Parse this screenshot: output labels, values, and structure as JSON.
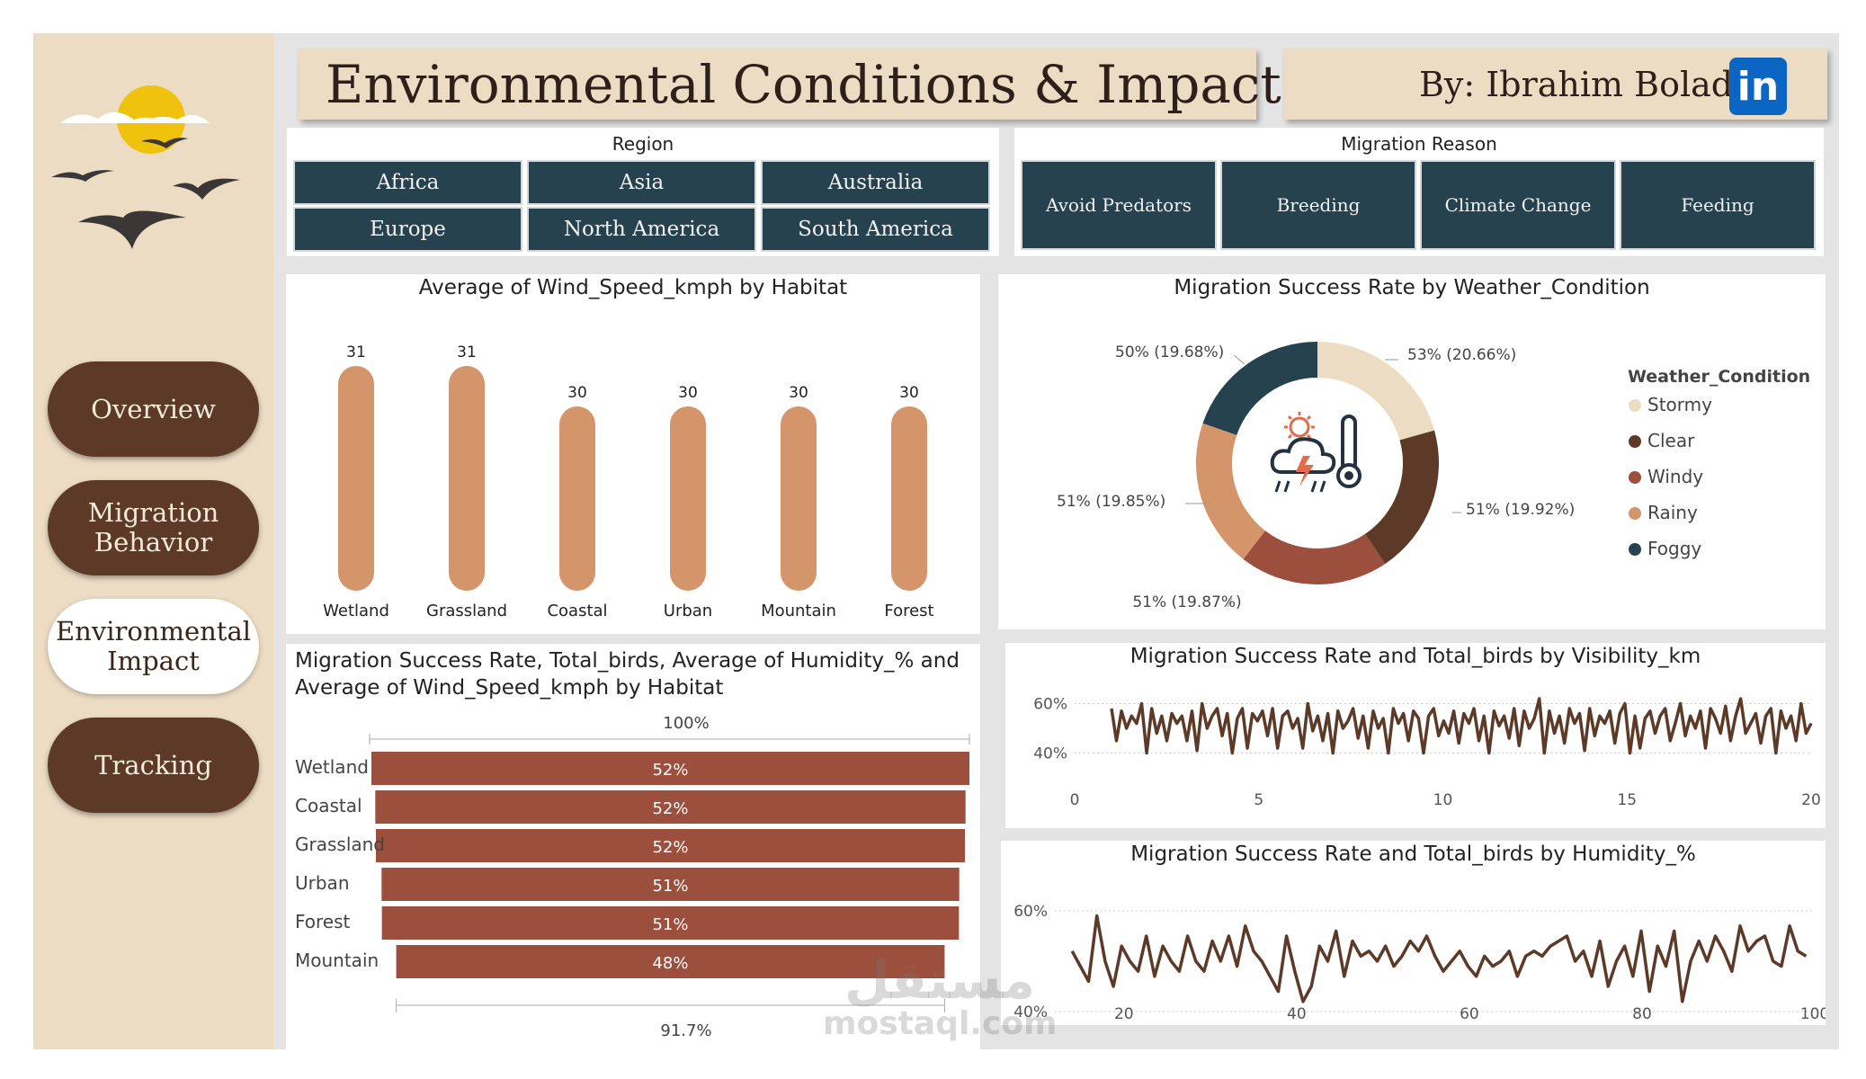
{
  "header": {
    "title": "Environmental Conditions & Impact",
    "author": "By: Ibrahim Bolad",
    "linkedin_icon": "in"
  },
  "nav": {
    "items": [
      {
        "label": "Overview",
        "active": false
      },
      {
        "label": "Migration Behavior",
        "active": false
      },
      {
        "label": "Environmental Impact",
        "active": true
      },
      {
        "label": "Tracking",
        "active": false
      }
    ]
  },
  "region_slicer": {
    "title": "Region",
    "options": [
      "Africa",
      "Asia",
      "Australia",
      "Europe",
      "North America",
      "South America"
    ]
  },
  "reason_slicer": {
    "title": "Migration Reason",
    "options": [
      "Avoid Predators",
      "Breeding",
      "Climate Change",
      "Feeding"
    ]
  },
  "colors": {
    "dark_brown": "#5c3a27",
    "beige": "#ecdcc4",
    "teal": "#26424f",
    "tan": "#d4956a",
    "rust": "#9c4f3c",
    "line": "#5c3a27"
  },
  "chart_data": [
    {
      "id": "wind_by_habitat",
      "type": "bar",
      "title": "Average of Wind_Speed_kmph by Habitat",
      "categories": [
        "Wetland",
        "Grassland",
        "Coastal",
        "Urban",
        "Mountain",
        "Forest"
      ],
      "values": [
        31,
        31,
        30,
        30,
        30,
        30
      ],
      "data_labels": [
        "31",
        "31",
        "30",
        "30",
        "30",
        "30"
      ],
      "color": "#d4956a"
    },
    {
      "id": "success_by_weather",
      "type": "pie",
      "title": "Migration Success Rate by Weather_Condition",
      "legend_title": "Weather_Condition",
      "legend_position": "right",
      "slices": [
        {
          "name": "Stormy",
          "share": 20.66,
          "label": "53% (20.66%)",
          "color": "#ecdcc4"
        },
        {
          "name": "Clear",
          "share": 19.92,
          "label": "51% (19.92%)",
          "color": "#5c3a27"
        },
        {
          "name": "Windy",
          "share": 19.87,
          "label": "51% (19.87%)",
          "color": "#9c4f3c"
        },
        {
          "name": "Rainy",
          "share": 19.85,
          "label": "51% (19.85%)",
          "color": "#d4956a"
        },
        {
          "name": "Foggy",
          "share": 19.68,
          "label": "50% (19.68%)",
          "color": "#26424f"
        }
      ]
    },
    {
      "id": "success_by_habitat",
      "type": "bar",
      "title": "Migration Success Rate, Total_birds, Average of Humidity_% and Average of Wind_Speed_kmph by Habitat",
      "categories": [
        "Wetland",
        "Coastal",
        "Grassland",
        "Urban",
        "Forest",
        "Mountain"
      ],
      "values": [
        52,
        52,
        52,
        51,
        51,
        48
      ],
      "data_labels": [
        "52%",
        "52%",
        "52%",
        "51%",
        "51%",
        "48%"
      ],
      "widths": [
        100,
        98.7,
        98.5,
        96.6,
        96.5,
        91.7
      ],
      "axis_top_label": "100%",
      "axis_bottom_label": "91.7%",
      "color": "#9c4f3c"
    },
    {
      "id": "success_by_visibility",
      "type": "line",
      "title": "Migration Success Rate and Total_birds by Visibility_km",
      "xlim": [
        0,
        20
      ],
      "ylim": [
        30,
        70
      ],
      "x_ticks": [
        "0",
        "5",
        "10",
        "15",
        "20"
      ],
      "y_ticks": [
        "60%",
        "40%"
      ],
      "series": [
        {
          "x_start": 1.0,
          "x_end": 20.0,
          "values": [
            58,
            45,
            57,
            50,
            55,
            52,
            60,
            40,
            58,
            48,
            55,
            45,
            56,
            52,
            55,
            45,
            57,
            41,
            60,
            50,
            55,
            58,
            47,
            56,
            40,
            54,
            58,
            42,
            56,
            53,
            57,
            47,
            58,
            42,
            55,
            57,
            50,
            54,
            42,
            60,
            49,
            55,
            45,
            56,
            40,
            57,
            50,
            53,
            58,
            46,
            55,
            42,
            57,
            50,
            54,
            40,
            58,
            52,
            56,
            45,
            57,
            54,
            40,
            55,
            58,
            47,
            53,
            48,
            57,
            44,
            56,
            52,
            58,
            45,
            55,
            40,
            57,
            51,
            55,
            46,
            58,
            43,
            57,
            50,
            54,
            62,
            40,
            57,
            48,
            55,
            44,
            58,
            52,
            56,
            41,
            58,
            47,
            55,
            52,
            57,
            44,
            56,
            60,
            40,
            55,
            42,
            54,
            57,
            48,
            55,
            58,
            45,
            52,
            60,
            47,
            55,
            50,
            57,
            42,
            58,
            54,
            48,
            59,
            45,
            55,
            62,
            48,
            52,
            56,
            44,
            55,
            58,
            40,
            57,
            50,
            55,
            45,
            60,
            48,
            52
          ]
        }
      ]
    },
    {
      "id": "success_by_humidity",
      "type": "line",
      "title": "Migration Success Rate and Total_birds by Humidity_%",
      "xlim": [
        12,
        100
      ],
      "ylim": [
        40,
        65
      ],
      "x_ticks": [
        "20",
        "40",
        "60",
        "80",
        "100"
      ],
      "y_ticks": [
        "60%",
        "40%"
      ],
      "series": [
        {
          "x_start": 14,
          "x_end": 99,
          "values": [
            52,
            49,
            46,
            59,
            50,
            45,
            53,
            50,
            48,
            55,
            47,
            53,
            50,
            48,
            55,
            50,
            48,
            54,
            50,
            55,
            49,
            57,
            52,
            50,
            47,
            44,
            55,
            48,
            42,
            45,
            53,
            50,
            56,
            47,
            54,
            51,
            52,
            50,
            53,
            49,
            51,
            54,
            52,
            55,
            51,
            48,
            50,
            52,
            49,
            47,
            51,
            49,
            50,
            52,
            47,
            51,
            52,
            51,
            53,
            54,
            55,
            50,
            52,
            47,
            54,
            45,
            50,
            53,
            47,
            56,
            44,
            53,
            49,
            56,
            42,
            50,
            54,
            50,
            55,
            52,
            48,
            57,
            52,
            54,
            55,
            50,
            49,
            57,
            52,
            51
          ]
        }
      ]
    }
  ],
  "watermark": {
    "arabic": "مستقل",
    "latin": "mostaql.com"
  }
}
